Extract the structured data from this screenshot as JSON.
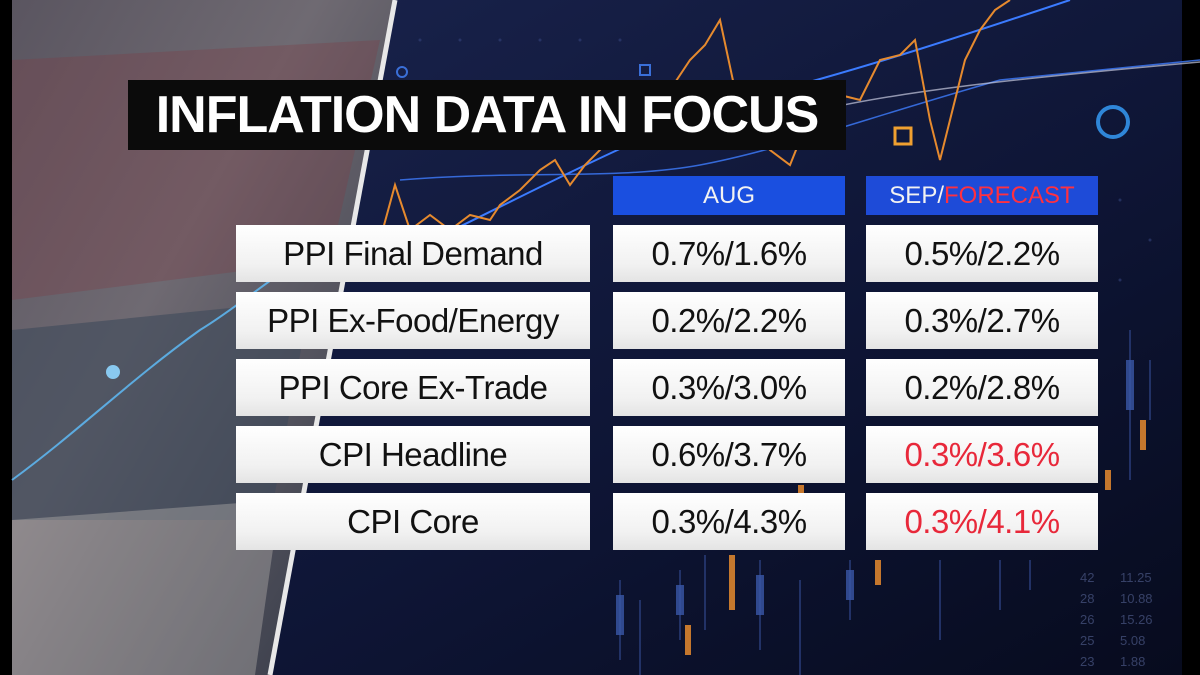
{
  "title": "INFLATION DATA IN FOCUS",
  "columns": {
    "aug": "AUG",
    "sep_prefix": "SEP/",
    "sep_forecast": "FORECAST"
  },
  "rows": [
    {
      "label": "PPI Final Demand",
      "aug": "0.7%/1.6%",
      "sep": "0.5%/2.2%",
      "sep_is_forecast": false
    },
    {
      "label": "PPI Ex-Food/Energy",
      "aug": "0.2%/2.2%",
      "sep": "0.3%/2.7%",
      "sep_is_forecast": false
    },
    {
      "label": "PPI Core Ex-Trade",
      "aug": "0.3%/3.0%",
      "sep": "0.2%/2.8%",
      "sep_is_forecast": false
    },
    {
      "label": "CPI Headline",
      "aug": "0.6%/3.7%",
      "sep": "0.3%/3.6%",
      "sep_is_forecast": true
    },
    {
      "label": "CPI Core",
      "aug": "0.3%/4.3%",
      "sep": "0.3%/4.1%",
      "sep_is_forecast": true
    }
  ],
  "colors": {
    "header_blue": "#1a4fe0",
    "forecast_red": "#e8283a",
    "background_navy": "#0d1330"
  }
}
